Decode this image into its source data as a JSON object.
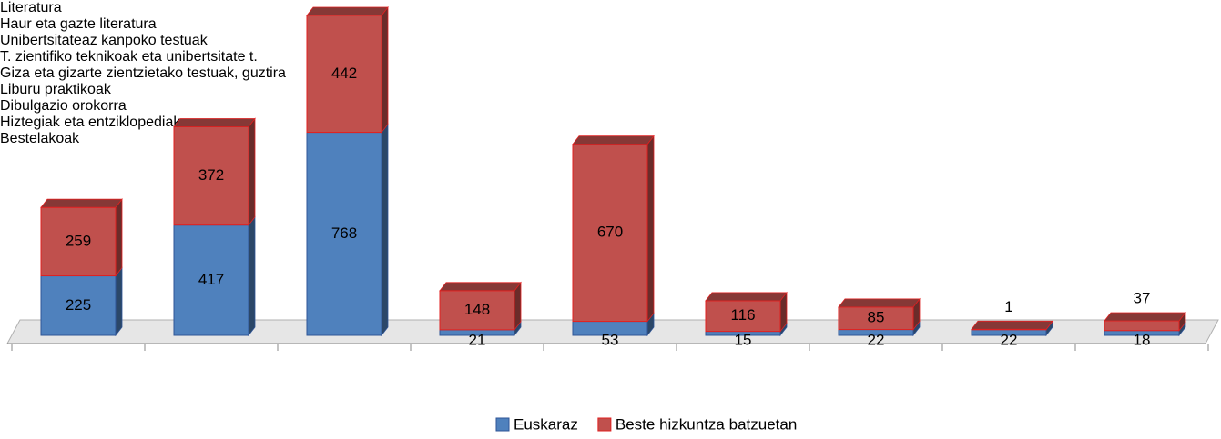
{
  "chart_data": {
    "type": "bar",
    "stacked": true,
    "categories": [
      "Literatura",
      "Haur eta gazte literatura",
      "Unibertsitateaz kanpoko testuak",
      "T. zientifiko teknikoak eta unibertsitate t.",
      "Giza eta gizarte zientzietako testuak, guztira",
      "Liburu praktikoak",
      "Dibulgazio orokorra",
      "Hiztegiak eta entziklopediak",
      "Bestelakoak"
    ],
    "series": [
      {
        "name": "Euskaraz",
        "color": "#4f81bd",
        "values": [
          225,
          417,
          768,
          21,
          53,
          15,
          22,
          22,
          18
        ]
      },
      {
        "name": "Beste hizkuntza batzuetan",
        "color": "#c0504d",
        "values": [
          259,
          372,
          442,
          148,
          670,
          116,
          85,
          1,
          37
        ]
      }
    ],
    "legend": "bottom"
  }
}
